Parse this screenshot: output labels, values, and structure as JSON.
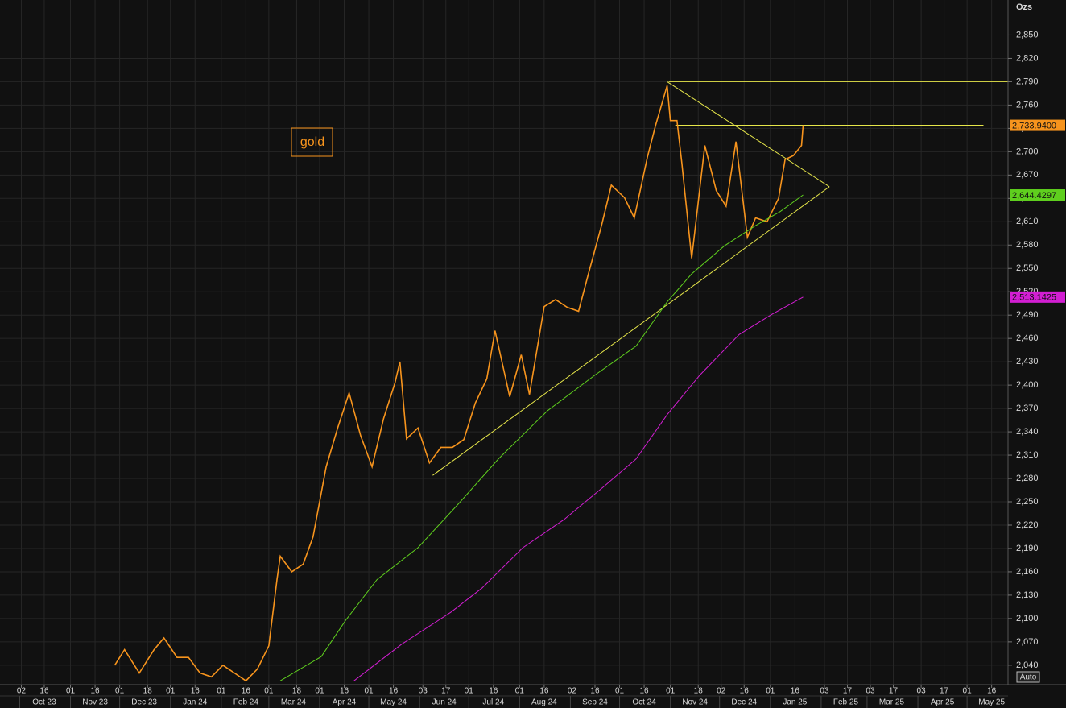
{
  "chart_data": {
    "type": "line",
    "y_label": "Ozs",
    "annotation": "gold",
    "button": "Auto",
    "ylim": [
      2015,
      2895
    ],
    "yticks": [
      {
        "value": 2040,
        "label": "2,040"
      },
      {
        "value": 2070,
        "label": "2,070"
      },
      {
        "value": 2100,
        "label": "2,100"
      },
      {
        "value": 2130,
        "label": "2,130"
      },
      {
        "value": 2160,
        "label": "2,160"
      },
      {
        "value": 2190,
        "label": "2,190"
      },
      {
        "value": 2220,
        "label": "2,220"
      },
      {
        "value": 2250,
        "label": "2,250"
      },
      {
        "value": 2280,
        "label": "2,280"
      },
      {
        "value": 2310,
        "label": "2,310"
      },
      {
        "value": 2340,
        "label": "2,340"
      },
      {
        "value": 2370,
        "label": "2,370"
      },
      {
        "value": 2400,
        "label": "2,400"
      },
      {
        "value": 2430,
        "label": "2,430"
      },
      {
        "value": 2460,
        "label": "2,460"
      },
      {
        "value": 2490,
        "label": "2,490"
      },
      {
        "value": 2520,
        "label": "2,520"
      },
      {
        "value": 2550,
        "label": "2,550"
      },
      {
        "value": 2580,
        "label": "2,580"
      },
      {
        "value": 2610,
        "label": "2,610"
      },
      {
        "value": 2640,
        "label": "2,640"
      },
      {
        "value": 2670,
        "label": "2,670"
      },
      {
        "value": 2700,
        "label": "2,700"
      },
      {
        "value": 2730,
        "label": "2,730"
      },
      {
        "value": 2760,
        "label": "2,760"
      },
      {
        "value": 2790,
        "label": "2,790"
      },
      {
        "value": 2820,
        "label": "2,820"
      },
      {
        "value": 2850,
        "label": "2,850"
      }
    ],
    "xlim": [
      "2023-09-19",
      "2025-05-26"
    ],
    "xticks": [
      {
        "value": "2023-10-02",
        "label": "02"
      },
      {
        "value": "2023-10-16",
        "label": "16"
      },
      {
        "value": "2023-11-01",
        "label": "01"
      },
      {
        "value": "2023-11-16",
        "label": "16"
      },
      {
        "value": "2023-12-01",
        "label": "01"
      },
      {
        "value": "2023-12-18",
        "label": "18"
      },
      {
        "value": "2024-01-01",
        "label": "01"
      },
      {
        "value": "2024-01-16",
        "label": "16"
      },
      {
        "value": "2024-02-01",
        "label": "01"
      },
      {
        "value": "2024-02-16",
        "label": "16"
      },
      {
        "value": "2024-03-01",
        "label": "01"
      },
      {
        "value": "2024-03-18",
        "label": "18"
      },
      {
        "value": "2024-04-01",
        "label": "01"
      },
      {
        "value": "2024-04-16",
        "label": "16"
      },
      {
        "value": "2024-05-01",
        "label": "01"
      },
      {
        "value": "2024-05-16",
        "label": "16"
      },
      {
        "value": "2024-06-03",
        "label": "03"
      },
      {
        "value": "2024-06-17",
        "label": "17"
      },
      {
        "value": "2024-07-01",
        "label": "01"
      },
      {
        "value": "2024-07-16",
        "label": "16"
      },
      {
        "value": "2024-08-01",
        "label": "01"
      },
      {
        "value": "2024-08-16",
        "label": "16"
      },
      {
        "value": "2024-09-02",
        "label": "02"
      },
      {
        "value": "2024-09-16",
        "label": "16"
      },
      {
        "value": "2024-10-01",
        "label": "01"
      },
      {
        "value": "2024-10-16",
        "label": "16"
      },
      {
        "value": "2024-11-01",
        "label": "01"
      },
      {
        "value": "2024-11-18",
        "label": "18"
      },
      {
        "value": "2024-12-02",
        "label": "02"
      },
      {
        "value": "2024-12-16",
        "label": "16"
      },
      {
        "value": "2025-01-01",
        "label": "01"
      },
      {
        "value": "2025-01-16",
        "label": "16"
      },
      {
        "value": "2025-02-03",
        "label": "03"
      },
      {
        "value": "2025-02-17",
        "label": "17"
      },
      {
        "value": "2025-03-03",
        "label": "03"
      },
      {
        "value": "2025-03-17",
        "label": "17"
      },
      {
        "value": "2025-04-03",
        "label": "03"
      },
      {
        "value": "2025-04-17",
        "label": "17"
      },
      {
        "value": "2025-05-01",
        "label": "01"
      },
      {
        "value": "2025-05-16",
        "label": "16"
      }
    ],
    "month_ticks": [
      {
        "value": "2023-10",
        "label": "Oct 23"
      },
      {
        "value": "2023-11",
        "label": "Nov 23"
      },
      {
        "value": "2023-12",
        "label": "Dec 23"
      },
      {
        "value": "2024-01",
        "label": "Jan 24"
      },
      {
        "value": "2024-02",
        "label": "Feb 24"
      },
      {
        "value": "2024-03",
        "label": "Mar 24"
      },
      {
        "value": "2024-04",
        "label": "Apr 24"
      },
      {
        "value": "2024-05",
        "label": "May 24"
      },
      {
        "value": "2024-06",
        "label": "Jun 24"
      },
      {
        "value": "2024-07",
        "label": "Jul 24"
      },
      {
        "value": "2024-08",
        "label": "Aug 24"
      },
      {
        "value": "2024-09",
        "label": "Sep 24"
      },
      {
        "value": "2024-10",
        "label": "Oct 24"
      },
      {
        "value": "2024-11",
        "label": "Nov 24"
      },
      {
        "value": "2024-12",
        "label": "Dec 24"
      },
      {
        "value": "2025-01",
        "label": "Jan 25"
      },
      {
        "value": "2025-02",
        "label": "Feb 25"
      },
      {
        "value": "2025-03",
        "label": "Mar 25"
      },
      {
        "value": "2025-04",
        "label": "Apr 25"
      },
      {
        "value": "2025-05",
        "label": "May 25"
      }
    ],
    "grid": true,
    "series": [
      {
        "color": "#f7941d",
        "x": [
          "2023-11-28",
          "2023-12-04",
          "2023-12-13",
          "2023-12-22",
          "2023-12-28",
          "2024-01-05",
          "2024-01-12",
          "2024-01-19",
          "2024-01-26",
          "2024-02-02",
          "2024-02-09",
          "2024-02-16",
          "2024-02-23",
          "2024-03-01",
          "2024-03-06",
          "2024-03-08",
          "2024-03-15",
          "2024-03-22",
          "2024-03-28",
          "2024-04-05",
          "2024-04-12",
          "2024-04-19",
          "2024-04-26",
          "2024-05-03",
          "2024-05-10",
          "2024-05-17",
          "2024-05-20",
          "2024-05-24",
          "2024-05-31",
          "2024-06-07",
          "2024-06-14",
          "2024-06-21",
          "2024-06-28",
          "2024-07-05",
          "2024-07-12",
          "2024-07-17",
          "2024-07-26",
          "2024-08-02",
          "2024-08-07",
          "2024-08-16",
          "2024-08-23",
          "2024-08-30",
          "2024-09-06",
          "2024-09-12",
          "2024-09-20",
          "2024-09-26",
          "2024-10-04",
          "2024-10-10",
          "2024-10-18",
          "2024-10-23",
          "2024-10-30",
          "2024-11-01",
          "2024-11-05",
          "2024-11-08",
          "2024-11-14",
          "2024-11-22",
          "2024-11-29",
          "2024-12-05",
          "2024-12-11",
          "2024-12-18",
          "2024-12-23",
          "2024-12-30",
          "2025-01-06",
          "2025-01-10",
          "2025-01-15",
          "2025-01-20",
          "2025-01-21"
        ],
        "values": [
          2040,
          2060,
          2030,
          2060,
          2075,
          2050,
          2050,
          2030,
          2025,
          2040,
          2030,
          2020,
          2035,
          2065,
          2150,
          2180,
          2160,
          2170,
          2205,
          2295,
          2345,
          2390,
          2335,
          2295,
          2357,
          2403,
          2430,
          2331,
          2345,
          2300,
          2320,
          2320,
          2330,
          2377,
          2408,
          2470,
          2385,
          2439,
          2388,
          2501,
          2510,
          2500,
          2495,
          2543,
          2605,
          2657,
          2641,
          2615,
          2693,
          2734,
          2785,
          2740,
          2740,
          2685,
          2563,
          2708,
          2650,
          2630,
          2713,
          2590,
          2615,
          2610,
          2640,
          2690,
          2695,
          2708,
          2733.94
        ],
        "value_labels": [
          null,
          null,
          null,
          null,
          null,
          null,
          null,
          null,
          null,
          null,
          null,
          null,
          null,
          null,
          null,
          null,
          null,
          null,
          null,
          null,
          null,
          null,
          null,
          null,
          null,
          null,
          null,
          null,
          null,
          null,
          null,
          null,
          null,
          null,
          null,
          null,
          null,
          null,
          null,
          null,
          null,
          null,
          null,
          null,
          null,
          null,
          null,
          null,
          null,
          null,
          null,
          null,
          null,
          null,
          null,
          null,
          null,
          null,
          null,
          null,
          null,
          null,
          null,
          null,
          null,
          null,
          "2,733.9400"
        ]
      },
      {
        "color": "#5fcf1e",
        "x": [
          "2024-03-08",
          "2024-04-02",
          "2024-04-17",
          "2024-05-06",
          "2024-05-31",
          "2024-06-25",
          "2024-07-19",
          "2024-08-18",
          "2024-09-16",
          "2024-10-11",
          "2024-10-30",
          "2024-11-14",
          "2024-12-04",
          "2024-12-23",
          "2025-01-07",
          "2025-01-21"
        ],
        "values": [
          2020,
          2051,
          2098,
          2150,
          2191,
          2248,
          2305,
          2367,
          2413,
          2450,
          2507,
          2543,
          2579,
          2605,
          2623,
          2644.4297
        ],
        "value_labels": [
          null,
          null,
          null,
          null,
          null,
          null,
          null,
          null,
          null,
          null,
          null,
          null,
          null,
          null,
          null,
          "2,644.4297"
        ]
      },
      {
        "color": "#d21ed2",
        "x": [
          "2024-04-22",
          "2024-05-21",
          "2024-06-20",
          "2024-07-09",
          "2024-08-03",
          "2024-08-28",
          "2024-09-21",
          "2024-10-11",
          "2024-10-30",
          "2024-11-19",
          "2024-12-13",
          "2025-01-02",
          "2025-01-21"
        ],
        "values": [
          2020,
          2067,
          2108,
          2139,
          2191,
          2227,
          2269,
          2305,
          2362,
          2413,
          2465,
          2491,
          2513.1425
        ],
        "value_labels": [
          null,
          null,
          null,
          null,
          null,
          null,
          null,
          null,
          null,
          null,
          null,
          null,
          "2,513.1425"
        ]
      }
    ],
    "trendlines": [
      {
        "color": "#e6e64a",
        "x": [
          "2024-10-31",
          "2025-05-26"
        ],
        "values": [
          2790,
          2790
        ]
      },
      {
        "color": "#e6e64a",
        "x": [
          "2024-11-04",
          "2025-05-11"
        ],
        "values": [
          2734,
          2734
        ]
      },
      {
        "color": "#e6e64a",
        "x": [
          "2024-10-30",
          "2025-02-06"
        ],
        "values": [
          2790,
          2655
        ]
      },
      {
        "color": "#e6e64a",
        "x": [
          "2024-06-09",
          "2025-02-06"
        ],
        "values": [
          2284,
          2655
        ]
      }
    ]
  }
}
